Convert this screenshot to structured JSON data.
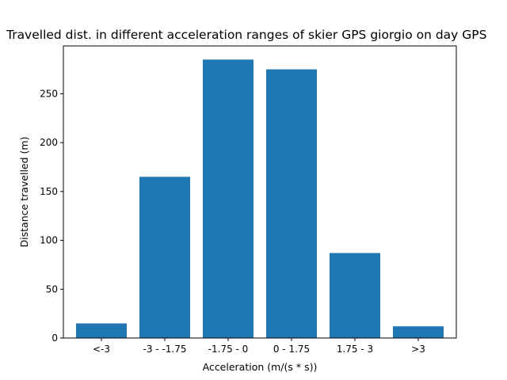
{
  "chart_data": {
    "type": "bar",
    "title": "Travelled dist. in different acceleration ranges of skier GPS giorgio on day GPS",
    "xlabel": "Acceleration (m/(s * s))",
    "ylabel": "Distance travelled (m)",
    "categories": [
      "<-3",
      "-3 - -1.75",
      "-1.75 - 0",
      "0 - 1.75",
      "1.75 - 3",
      ">3"
    ],
    "values": [
      15,
      165,
      285,
      275,
      87,
      12
    ],
    "ylim": [
      0,
      299
    ],
    "yticks": [
      0,
      50,
      100,
      150,
      200,
      250
    ],
    "bar_color": "#1f77b4",
    "grid": false,
    "legend": "none"
  }
}
